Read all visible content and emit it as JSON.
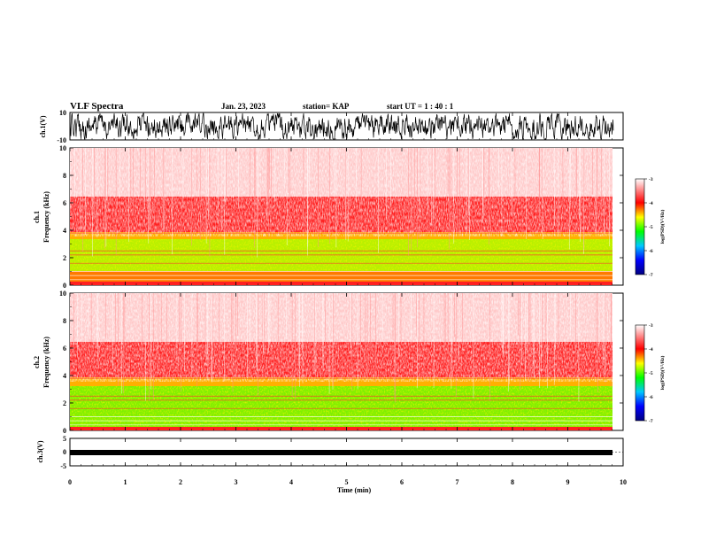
{
  "header": {
    "title": "VLF Spectra",
    "date": "Jan. 23, 2023",
    "station": "station= KAP",
    "start": "start UT =  1 : 40 : 1"
  },
  "chart_data": [
    {
      "type": "line",
      "id": "ch1_waveform",
      "ylabel": "ch.1(V)",
      "ylim": [
        -10,
        10
      ],
      "yticks": [
        "10",
        "-10"
      ],
      "xlim": [
        0,
        10
      ],
      "data_end": 9.83,
      "color": "#000000"
    },
    {
      "type": "heatmap",
      "id": "ch1_spectrogram",
      "ylabel_top": "ch.1",
      "ylabel": "Frequency (kHz)",
      "ylim": [
        0,
        10
      ],
      "yticks": [
        "0",
        "2",
        "4",
        "6",
        "8",
        "10"
      ],
      "xlim": [
        0,
        10
      ],
      "data_end": 9.83,
      "bands_khz": [
        {
          "from": 0,
          "to": 0.3,
          "level": "red"
        },
        {
          "from": 0.3,
          "to": 1.0,
          "level": "green-yellow"
        },
        {
          "from": 1.0,
          "to": 3.4,
          "level": "green"
        },
        {
          "from": 3.4,
          "to": 4.0,
          "level": "yellow"
        },
        {
          "from": 4.0,
          "to": 6.5,
          "level": "red"
        },
        {
          "from": 6.5,
          "to": 10,
          "level": "red-white"
        }
      ]
    },
    {
      "type": "heatmap",
      "id": "ch2_spectrogram",
      "ylabel_top": "ch.2",
      "ylabel": "Frequency (kHz)",
      "ylim": [
        0,
        10
      ],
      "yticks": [
        "0",
        "2",
        "4",
        "6",
        "8",
        "10"
      ],
      "xlim": [
        0,
        10
      ],
      "data_end": 9.83,
      "bands_khz": [
        {
          "from": 0,
          "to": 0.3,
          "level": "red"
        },
        {
          "from": 0.3,
          "to": 1.1,
          "level": "green"
        },
        {
          "from": 1.1,
          "to": 1.9,
          "level": "green"
        },
        {
          "from": 1.9,
          "to": 3.1,
          "level": "green"
        },
        {
          "from": 3.1,
          "to": 3.9,
          "level": "yellow"
        },
        {
          "from": 3.9,
          "to": 6.5,
          "level": "red"
        },
        {
          "from": 6.5,
          "to": 10,
          "level": "red-white"
        }
      ]
    },
    {
      "type": "line",
      "id": "ch3_waveform",
      "ylabel": "ch.3(V)",
      "ylim": [
        -5,
        5
      ],
      "yticks": [
        "5",
        "0",
        "-5"
      ],
      "xlim": [
        0,
        10
      ],
      "data_end": 9.83,
      "color": "#000000"
    }
  ],
  "x_axis": {
    "label": "Time (min)",
    "ticks": [
      "0",
      "1",
      "2",
      "3",
      "4",
      "5",
      "6",
      "7",
      "8",
      "9",
      "10"
    ]
  },
  "colorbar": {
    "label": "log(PSD)(V²/Hz)",
    "ticks": [
      "-3",
      "-4",
      "-5",
      "-6",
      "-7"
    ],
    "range": [
      -7,
      -3
    ],
    "colors": [
      "#000080",
      "#0000ff",
      "#00c8ff",
      "#00ff00",
      "#ffff00",
      "#ff0000",
      "#ffffff"
    ]
  }
}
